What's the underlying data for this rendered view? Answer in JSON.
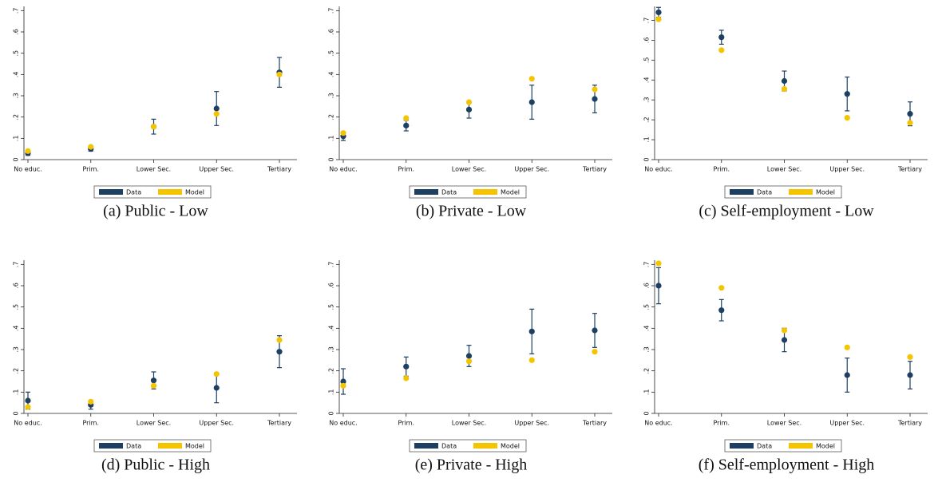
{
  "chart_data": [
    {
      "type": "errorbar",
      "title": "(a) Public - Low",
      "categories": [
        "No educ.",
        "Prim.",
        "Lower Sec.",
        "Upper Sec.",
        "Tertiary"
      ],
      "series": [
        {
          "name": "Data",
          "color": "#1d3f62",
          "values": [
            0.03,
            0.05,
            0.155,
            0.24,
            0.41
          ],
          "errors": [
            0.01,
            0.01,
            0.035,
            0.08,
            0.07
          ]
        },
        {
          "name": "Model",
          "color": "#f5c400",
          "values": [
            0.04,
            0.06,
            0.155,
            0.215,
            0.4
          ]
        }
      ],
      "ylim": [
        0,
        0.72
      ],
      "yticks": [
        0,
        {
          "value": 0.1,
          "label": ".1"
        },
        {
          "value": 0.2,
          "label": ".2"
        },
        {
          "value": 0.3,
          "label": ".3"
        },
        {
          "value": 0.4,
          "label": ".4"
        },
        {
          "value": 0.5,
          "label": ".5"
        },
        {
          "value": 0.6,
          "label": ".6"
        },
        {
          "value": 0.7,
          "label": ".7"
        }
      ]
    },
    {
      "type": "errorbar",
      "title": "(b) Private - Low",
      "categories": [
        "No educ.",
        "Prim.",
        "Lower Sec.",
        "Upper Sec.",
        "Tertiary"
      ],
      "series": [
        {
          "name": "Data",
          "color": "#1d3f62",
          "values": [
            0.11,
            0.16,
            0.235,
            0.27,
            0.285
          ],
          "errors": [
            0.02,
            0.025,
            0.04,
            0.08,
            0.065
          ]
        },
        {
          "name": "Model",
          "color": "#f5c400",
          "values": [
            0.125,
            0.195,
            0.27,
            0.38,
            0.33
          ]
        }
      ],
      "ylim": [
        0,
        0.72
      ],
      "yticks": [
        0,
        {
          "value": 0.1,
          "label": ".1"
        },
        {
          "value": 0.2,
          "label": ".2"
        },
        {
          "value": 0.3,
          "label": ".3"
        },
        {
          "value": 0.4,
          "label": ".4"
        },
        {
          "value": 0.5,
          "label": ".5"
        },
        {
          "value": 0.6,
          "label": ".6"
        },
        {
          "value": 0.7,
          "label": ".7"
        }
      ]
    },
    {
      "type": "errorbar",
      "title": "(c) Self-employment - Low",
      "categories": [
        "No educ.",
        "Prim.",
        "Lower Sec.",
        "Upper Sec.",
        "Tertiary"
      ],
      "series": [
        {
          "name": "Data",
          "color": "#1d3f62",
          "values": [
            0.74,
            0.615,
            0.395,
            0.33,
            0.23
          ],
          "errors": [
            0.025,
            0.035,
            0.05,
            0.085,
            0.06
          ]
        },
        {
          "name": "Model",
          "color": "#f5c400",
          "values": [
            0.705,
            0.55,
            0.355,
            0.21,
            0.185
          ]
        }
      ],
      "ylim": [
        0,
        0.77
      ],
      "yticks": [
        0,
        {
          "value": 0.1,
          "label": ".1"
        },
        {
          "value": 0.2,
          "label": ".2"
        },
        {
          "value": 0.3,
          "label": ".3"
        },
        {
          "value": 0.4,
          "label": ".4"
        },
        {
          "value": 0.5,
          "label": ".5"
        },
        {
          "value": 0.6,
          "label": ".6"
        },
        {
          "value": 0.7,
          "label": ".7"
        }
      ]
    },
    {
      "type": "errorbar",
      "title": "(d) Public - High",
      "categories": [
        "No educ.",
        "Prim.",
        "Lower Sec.",
        "Upper Sec.",
        "Tertiary"
      ],
      "series": [
        {
          "name": "Data",
          "color": "#1d3f62",
          "values": [
            0.06,
            0.04,
            0.155,
            0.12,
            0.29
          ],
          "errors": [
            0.04,
            0.02,
            0.04,
            0.07,
            0.075
          ]
        },
        {
          "name": "Model",
          "color": "#f5c400",
          "values": [
            0.03,
            0.055,
            0.13,
            0.185,
            0.345
          ]
        }
      ],
      "ylim": [
        0,
        0.72
      ],
      "yticks": [
        0,
        {
          "value": 0.1,
          "label": ".1"
        },
        {
          "value": 0.2,
          "label": ".2"
        },
        {
          "value": 0.3,
          "label": ".3"
        },
        {
          "value": 0.4,
          "label": ".4"
        },
        {
          "value": 0.5,
          "label": ".5"
        },
        {
          "value": 0.6,
          "label": ".6"
        },
        {
          "value": 0.7,
          "label": ".7"
        }
      ]
    },
    {
      "type": "errorbar",
      "title": "(e) Private - High",
      "categories": [
        "No educ.",
        "Prim.",
        "Lower Sec.",
        "Upper Sec.",
        "Tertiary"
      ],
      "series": [
        {
          "name": "Data",
          "color": "#1d3f62",
          "values": [
            0.15,
            0.22,
            0.27,
            0.385,
            0.39
          ],
          "errors": [
            0.06,
            0.045,
            0.05,
            0.105,
            0.08
          ]
        },
        {
          "name": "Model",
          "color": "#f5c400",
          "values": [
            0.13,
            0.165,
            0.245,
            0.25,
            0.29
          ]
        }
      ],
      "ylim": [
        0,
        0.72
      ],
      "yticks": [
        0,
        {
          "value": 0.1,
          "label": ".1"
        },
        {
          "value": 0.2,
          "label": ".2"
        },
        {
          "value": 0.3,
          "label": ".3"
        },
        {
          "value": 0.4,
          "label": ".4"
        },
        {
          "value": 0.5,
          "label": ".5"
        },
        {
          "value": 0.6,
          "label": ".6"
        },
        {
          "value": 0.7,
          "label": ".7"
        }
      ]
    },
    {
      "type": "errorbar",
      "title": "(f) Self-employment - High",
      "categories": [
        "No educ.",
        "Prim.",
        "Lower Sec.",
        "Upper Sec.",
        "Tertiary"
      ],
      "series": [
        {
          "name": "Data",
          "color": "#1d3f62",
          "values": [
            0.6,
            0.485,
            0.345,
            0.18,
            0.18
          ],
          "errors": [
            0.085,
            0.05,
            0.055,
            0.08,
            0.065
          ]
        },
        {
          "name": "Model",
          "color": "#f5c400",
          "values": [
            0.705,
            0.59,
            0.39,
            0.31,
            0.265
          ]
        }
      ],
      "ylim": [
        0,
        0.72
      ],
      "yticks": [
        0,
        {
          "value": 0.1,
          "label": ".1"
        },
        {
          "value": 0.2,
          "label": ".2"
        },
        {
          "value": 0.3,
          "label": ".3"
        },
        {
          "value": 0.4,
          "label": ".4"
        },
        {
          "value": 0.5,
          "label": ".5"
        },
        {
          "value": 0.6,
          "label": ".6"
        },
        {
          "value": 0.7,
          "label": ".7"
        }
      ]
    }
  ]
}
